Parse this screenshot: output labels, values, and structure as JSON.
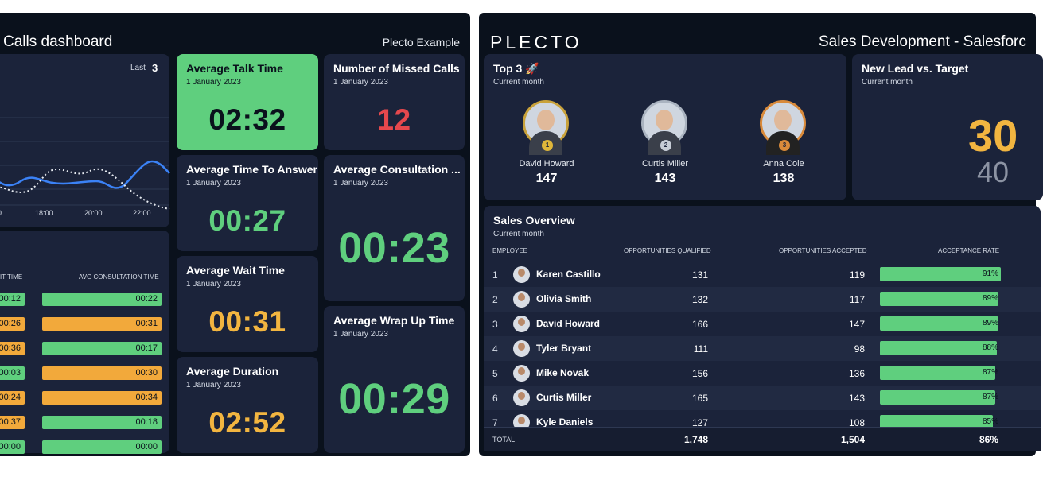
{
  "left": {
    "title": "Calls dashboard",
    "subtitle": "Plecto Example",
    "chart": {
      "last_label": "Last",
      "last_value": "3",
      "x_ticks": [
        "00",
        "18:00",
        "20:00",
        "22:00"
      ]
    },
    "table": {
      "headers": [
        "IT TIME",
        "AVG CONSULTATION TIME"
      ],
      "rows": [
        {
          "wait": "00:12",
          "wait_status": "green",
          "consult": "00:22",
          "consult_status": "green"
        },
        {
          "wait": "00:26",
          "wait_status": "orange",
          "consult": "00:31",
          "consult_status": "orange"
        },
        {
          "wait": "00:36",
          "wait_status": "orange",
          "consult": "00:17",
          "consult_status": "green"
        },
        {
          "wait": "00:03",
          "wait_status": "green",
          "consult": "00:30",
          "consult_status": "orange"
        },
        {
          "wait": "00:24",
          "wait_status": "orange",
          "consult": "00:34",
          "consult_status": "orange"
        },
        {
          "wait": "00:37",
          "wait_status": "orange",
          "consult": "00:18",
          "consult_status": "green"
        },
        {
          "wait": "00:00",
          "wait_status": "green",
          "consult": "00:00",
          "consult_status": "green"
        }
      ]
    },
    "kpis": {
      "talk": {
        "title": "Average Talk Time",
        "date": "1 January 2023",
        "value": "02:32"
      },
      "missed": {
        "title": "Number of Missed Calls",
        "date": "1 January 2023",
        "value": "12"
      },
      "answer": {
        "title": "Average Time To Answer",
        "date": "1 January 2023",
        "value": "00:27"
      },
      "consult": {
        "title": "Average Consultation ...",
        "date": "1 January 2023",
        "value": "00:23"
      },
      "wait": {
        "title": "Average Wait Time",
        "date": "1 January 2023",
        "value": "00:31"
      },
      "wrap": {
        "title": "Average Wrap Up Time",
        "date": "1 January 2023",
        "value": "00:29"
      },
      "duration": {
        "title": "Average Duration",
        "date": "1 January 2023",
        "value": "02:52"
      }
    }
  },
  "right": {
    "logo": "PLECTO",
    "title": "Sales Development - Salesforc",
    "top3": {
      "title": "Top 3 🚀",
      "period": "Current month",
      "people": [
        {
          "name": "David Howard",
          "value": "147",
          "rank": "1"
        },
        {
          "name": "Curtis Miller",
          "value": "143",
          "rank": "2"
        },
        {
          "name": "Anna Cole",
          "value": "138",
          "rank": "3"
        }
      ]
    },
    "lead": {
      "title": "New Lead vs. Target",
      "period": "Current month",
      "value": "30",
      "target": "40"
    },
    "sales": {
      "title": "Sales Overview",
      "period": "Current month",
      "headers": {
        "employee": "EMPLOYEE",
        "qualified": "OPPORTUNITIES QUALIFIED",
        "accepted": "OPPORTUNITIES ACCEPTED",
        "rate": "ACCEPTANCE RATE"
      },
      "rows": [
        {
          "n": "1",
          "name": "Karen Castillo",
          "q": "131",
          "a": "119",
          "rate": "91%",
          "rate_value": 91
        },
        {
          "n": "2",
          "name": "Olivia Smith",
          "q": "132",
          "a": "117",
          "rate": "89%",
          "rate_value": 89
        },
        {
          "n": "3",
          "name": "David Howard",
          "q": "166",
          "a": "147",
          "rate": "89%",
          "rate_value": 89
        },
        {
          "n": "4",
          "name": "Tyler Bryant",
          "q": "111",
          "a": "98",
          "rate": "88%",
          "rate_value": 88
        },
        {
          "n": "5",
          "name": "Mike Novak",
          "q": "156",
          "a": "136",
          "rate": "87%",
          "rate_value": 87
        },
        {
          "n": "6",
          "name": "Curtis Miller",
          "q": "165",
          "a": "143",
          "rate": "87%",
          "rate_value": 87
        },
        {
          "n": "7",
          "name": "Kyle Daniels",
          "q": "127",
          "a": "108",
          "rate": "85%",
          "rate_value": 85
        }
      ],
      "total": {
        "label": "TOTAL",
        "q": "1,748",
        "a": "1,504",
        "rate": "86%"
      }
    }
  },
  "colors": {
    "background": "#0a111c",
    "card": "#1b233a",
    "green": "#5fcf7e",
    "amber": "#f2b540",
    "red": "#e5484d",
    "line_blue": "#3b82f6"
  }
}
